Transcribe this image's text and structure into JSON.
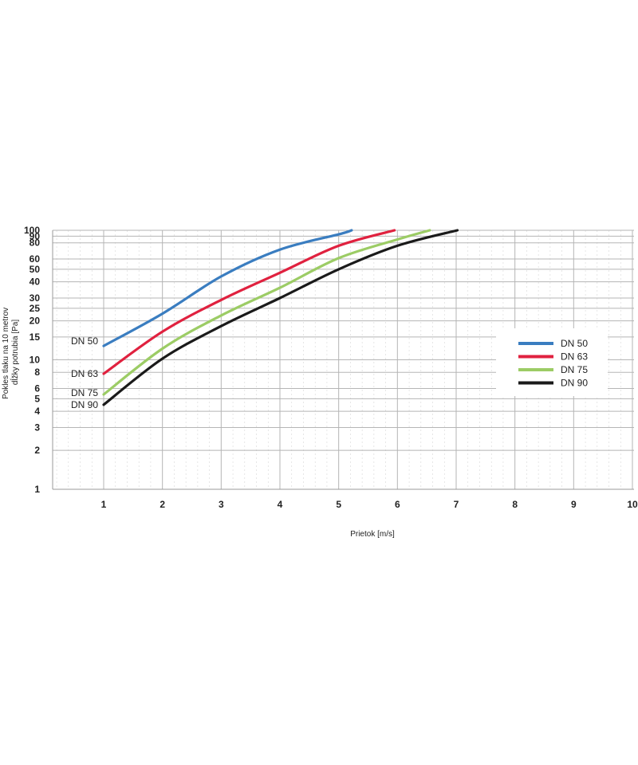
{
  "chart_data": {
    "type": "line",
    "xlabel": "Prietok [m/s]",
    "ylabel": [
      "Pokles tlaku na 10 metrov",
      "dĺžky potrubia [Pa]"
    ],
    "xlim": [
      0,
      10
    ],
    "ylim": [
      1,
      100
    ],
    "y_scale": "log",
    "grid": true,
    "legend_position": "right",
    "x_ticks": [
      1,
      2,
      3,
      4,
      5,
      6,
      7,
      8,
      9,
      10
    ],
    "x_tick_labels": [
      "1",
      "2",
      "3",
      "4",
      "5",
      "6",
      "7",
      "8",
      "9",
      "10"
    ],
    "y_ticks": [
      1,
      2,
      3,
      4,
      5,
      6,
      8,
      10,
      15,
      20,
      25,
      30,
      40,
      50,
      60,
      80,
      90,
      100
    ],
    "y_tick_labels": [
      "1",
      "2",
      "3",
      "4",
      "5",
      "6",
      "8",
      "10",
      "15",
      "20",
      "25",
      "30",
      "40",
      "50",
      "60",
      "80",
      "90",
      "100"
    ],
    "series": [
      {
        "name": "DN 50",
        "color": "#3a7dc0",
        "x": [
          1,
          2,
          3,
          4,
          5,
          5.22
        ],
        "y": [
          12.8,
          22.7,
          44,
          71,
          93,
          100
        ]
      },
      {
        "name": "DN 63",
        "color": "#e0213f",
        "x": [
          1,
          2,
          3,
          4,
          5,
          5.95
        ],
        "y": [
          7.8,
          16.5,
          29,
          47,
          76,
          100
        ]
      },
      {
        "name": "DN 75",
        "color": "#9ccc65",
        "x": [
          1,
          2,
          3,
          4,
          5,
          6,
          6.55
        ],
        "y": [
          5.4,
          12.2,
          22,
          36,
          61,
          85,
          100
        ]
      },
      {
        "name": "DN 90",
        "color": "#1a1a1a",
        "x": [
          1,
          2,
          3,
          4,
          5,
          6,
          7.02
        ],
        "y": [
          4.5,
          10.2,
          18.2,
          30,
          50,
          76,
          100
        ]
      }
    ]
  }
}
